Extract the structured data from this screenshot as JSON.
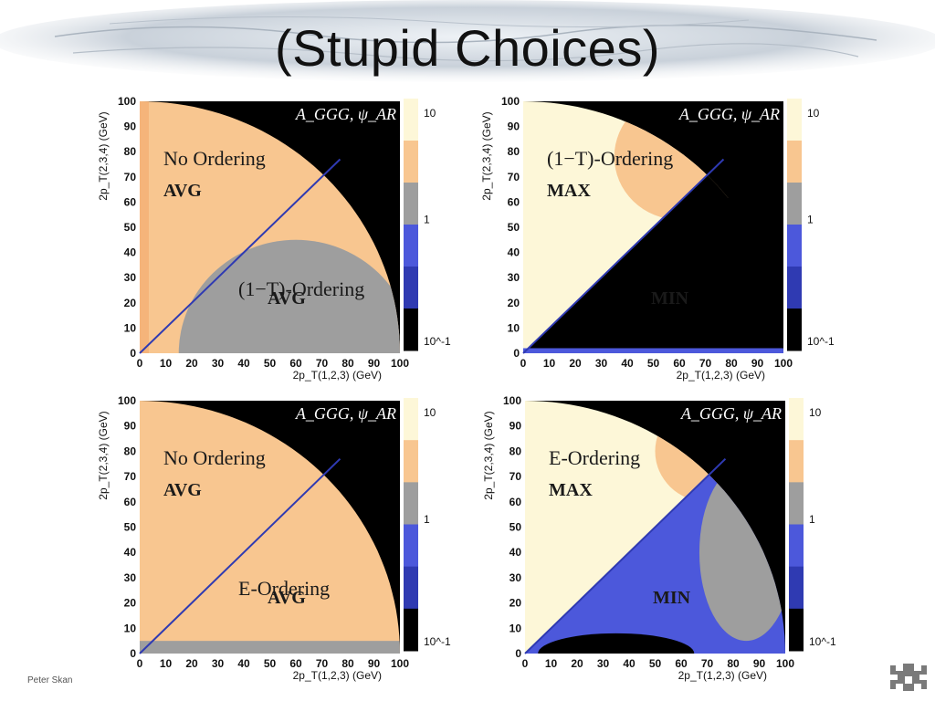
{
  "slide": {
    "title": "(Stupid Choices)",
    "author": "Peter Skan"
  },
  "colors": {
    "black": "#000000",
    "light": "#fdf7d8",
    "orange": "#f8c690",
    "orange_dark": "#f5b47a",
    "gray": "#9e9e9e",
    "blue": "#4c58db",
    "blue_dark": "#2f3ab2"
  },
  "panel_common": {
    "corner_label": "A_GGG, ψ_AR",
    "xlabel": "2p_T(1,2,3) (GeV)",
    "ylabel": "2p_T(2,3,4) (GeV)",
    "ticks": [
      "0",
      "10",
      "20",
      "30",
      "40",
      "50",
      "60",
      "70",
      "80",
      "90",
      "100"
    ],
    "colorbar_ticks": [
      "10",
      "1",
      "10^-1"
    ]
  },
  "chart_data": [
    {
      "type": "heatmap",
      "panel": "top-left",
      "xlim": [
        0,
        100
      ],
      "ylim": [
        0,
        100
      ],
      "upper_label": [
        "No Ordering",
        "AVG"
      ],
      "lower_label": [
        "(1−T)-Ordering",
        "AVG"
      ],
      "diagonal_end": 77
    },
    {
      "type": "heatmap",
      "panel": "top-right",
      "xlim": [
        0,
        100
      ],
      "ylim": [
        0,
        100
      ],
      "upper_label": [
        "(1−T)-Ordering",
        "MAX"
      ],
      "lower_label": [
        "",
        "MIN"
      ],
      "diagonal_end": 77
    },
    {
      "type": "heatmap",
      "panel": "bottom-left",
      "xlim": [
        0,
        100
      ],
      "ylim": [
        0,
        100
      ],
      "upper_label": [
        "No Ordering",
        "AVG"
      ],
      "lower_label": [
        "E-Ordering",
        "AVG"
      ],
      "diagonal_end": 77
    },
    {
      "type": "heatmap",
      "panel": "bottom-right",
      "xlim": [
        0,
        100
      ],
      "ylim": [
        0,
        100
      ],
      "upper_label": [
        "E-Ordering",
        "MAX"
      ],
      "lower_label": [
        "",
        "MIN"
      ],
      "diagonal_end": 77
    }
  ]
}
